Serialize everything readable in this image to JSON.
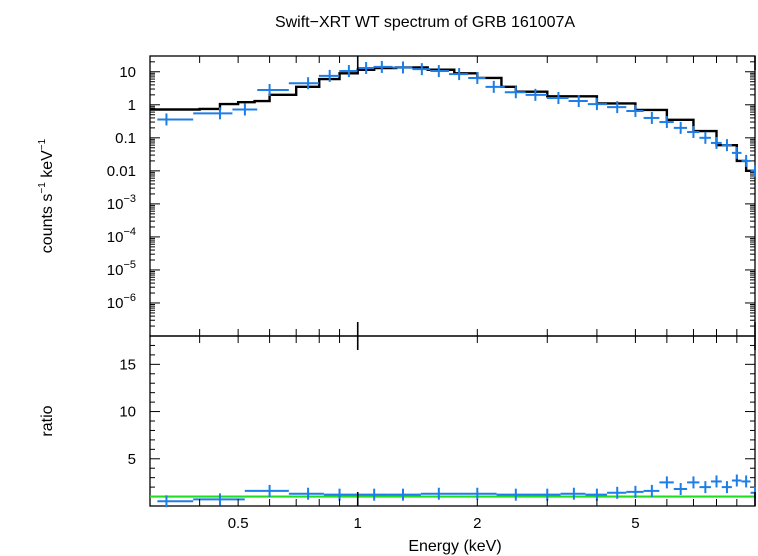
{
  "chart_data": {
    "type": "scatter",
    "title": "Swift−XRT WT spectrum of GRB 161007A",
    "xlabel": "Energy (keV)",
    "x_scale": "log",
    "xlim": [
      0.3,
      10
    ],
    "x_ticks": [
      {
        "value": 0.5,
        "label": "0.5"
      },
      {
        "value": 1,
        "label": "1"
      },
      {
        "value": 2,
        "label": "2"
      },
      {
        "value": 5,
        "label": "5"
      }
    ],
    "panels": [
      {
        "name": "spectrum",
        "ylabel_base": "counts s",
        "ylabel_mid": " keV",
        "ylabel_sup": "−1",
        "y_scale": "log",
        "ylim": [
          1e-07,
          30
        ],
        "y_ticks": [
          {
            "value": 10,
            "label": "10"
          },
          {
            "value": 1,
            "label": "1"
          },
          {
            "value": 0.1,
            "label": "0.1"
          },
          {
            "value": 0.01,
            "label": "0.01"
          },
          {
            "value": 0.001,
            "base": "10",
            "exp": "−3"
          },
          {
            "value": 0.0001,
            "base": "10",
            "exp": "−4"
          },
          {
            "value": 1e-05,
            "base": "10",
            "exp": "−5"
          },
          {
            "value": 1e-06,
            "base": "10",
            "exp": "−6"
          }
        ],
        "data_color": "#1c7ee6",
        "model_color": "#000000",
        "model": [
          [
            0.3,
            0.72
          ],
          [
            0.4,
            0.75
          ],
          [
            0.45,
            1.05
          ],
          [
            0.5,
            1.2
          ],
          [
            0.55,
            1.3
          ],
          [
            0.6,
            2.0
          ],
          [
            0.7,
            3.5
          ],
          [
            0.8,
            6.0
          ],
          [
            0.9,
            9.0
          ],
          [
            1.0,
            11.5
          ],
          [
            1.1,
            13.0
          ],
          [
            1.25,
            13.5
          ],
          [
            1.5,
            11.5
          ],
          [
            1.75,
            9.0
          ],
          [
            2.0,
            6.5
          ],
          [
            2.3,
            3.5
          ],
          [
            2.5,
            2.5
          ],
          [
            3.0,
            1.8
          ],
          [
            4.0,
            1.1
          ],
          [
            5.0,
            0.7
          ],
          [
            6.0,
            0.35
          ],
          [
            7.0,
            0.16
          ],
          [
            8.0,
            0.06
          ],
          [
            9.0,
            0.02
          ],
          [
            9.5,
            0.01
          ],
          [
            10.0,
            0.01
          ]
        ],
        "data": [
          [
            0.33,
            0.36
          ],
          [
            0.45,
            0.55
          ],
          [
            0.52,
            0.72
          ],
          [
            0.6,
            2.8
          ],
          [
            0.75,
            4.5
          ],
          [
            0.85,
            7.5
          ],
          [
            0.95,
            10.5
          ],
          [
            1.05,
            13
          ],
          [
            1.15,
            14
          ],
          [
            1.3,
            13.5
          ],
          [
            1.45,
            12
          ],
          [
            1.6,
            10.5
          ],
          [
            1.8,
            8.5
          ],
          [
            2.0,
            6.5
          ],
          [
            2.2,
            3.5
          ],
          [
            2.5,
            2.4
          ],
          [
            2.8,
            2.0
          ],
          [
            3.2,
            1.6
          ],
          [
            3.6,
            1.3
          ],
          [
            4.0,
            1.05
          ],
          [
            4.5,
            0.85
          ],
          [
            5.0,
            0.65
          ],
          [
            5.5,
            0.4
          ],
          [
            6.0,
            0.3
          ],
          [
            6.5,
            0.2
          ],
          [
            7.0,
            0.15
          ],
          [
            7.5,
            0.1
          ],
          [
            8.0,
            0.07
          ],
          [
            8.5,
            0.06
          ],
          [
            9.0,
            0.035
          ],
          [
            9.5,
            0.02
          ],
          [
            10.0,
            0.01
          ]
        ]
      },
      {
        "name": "ratio",
        "ylabel": "ratio",
        "y_scale": "linear",
        "ylim": [
          0,
          18
        ],
        "y_ticks": [
          {
            "value": 15,
            "label": "15"
          },
          {
            "value": 10,
            "label": "10"
          },
          {
            "value": 5,
            "label": "5"
          }
        ],
        "reference_line": 1,
        "reference_color": "#22dd22",
        "data_color": "#1c7ee6",
        "data": [
          [
            0.33,
            0.5
          ],
          [
            0.45,
            0.7
          ],
          [
            0.6,
            1.6
          ],
          [
            0.75,
            1.3
          ],
          [
            0.9,
            1.2
          ],
          [
            1.1,
            1.2
          ],
          [
            1.3,
            1.2
          ],
          [
            1.6,
            1.3
          ],
          [
            2.0,
            1.3
          ],
          [
            2.5,
            1.2
          ],
          [
            3.0,
            1.2
          ],
          [
            3.5,
            1.3
          ],
          [
            4.0,
            1.2
          ],
          [
            4.5,
            1.4
          ],
          [
            5.0,
            1.5
          ],
          [
            5.5,
            1.6
          ],
          [
            6.0,
            2.5
          ],
          [
            6.5,
            1.8
          ],
          [
            7.0,
            2.5
          ],
          [
            7.5,
            2.0
          ],
          [
            8.0,
            2.6
          ],
          [
            8.5,
            2.0
          ],
          [
            9.0,
            2.7
          ],
          [
            9.5,
            2.6
          ],
          [
            10.0,
            1.4
          ]
        ]
      }
    ]
  }
}
